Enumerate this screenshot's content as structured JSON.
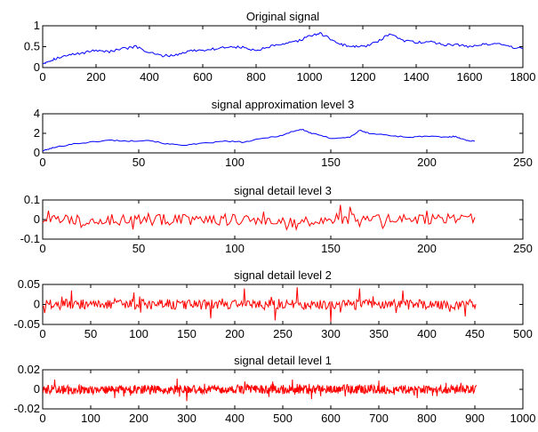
{
  "chart_data": [
    {
      "type": "line",
      "title": "Original signal",
      "color": "#0000ff",
      "xlim": [
        0,
        1800
      ],
      "ylim": [
        0,
        1
      ],
      "xticks": [
        "0",
        "200",
        "400",
        "600",
        "800",
        "1000",
        "1200",
        "1400",
        "1600",
        "1800"
      ],
      "yticks": [
        "0",
        "0.5",
        "1"
      ],
      "series": [
        {
          "x": [
            0,
            20,
            50,
            100,
            150,
            200,
            250,
            300,
            350,
            400,
            450,
            500,
            550,
            600,
            650,
            700,
            750,
            800,
            850,
            900,
            950,
            1000,
            1040,
            1080,
            1120,
            1160,
            1200,
            1250,
            1300,
            1350,
            1400,
            1450,
            1500,
            1550,
            1600,
            1650,
            1700,
            1750,
            1800
          ],
          "values": [
            0.1,
            0.15,
            0.22,
            0.3,
            0.35,
            0.42,
            0.38,
            0.45,
            0.5,
            0.35,
            0.28,
            0.3,
            0.4,
            0.42,
            0.45,
            0.5,
            0.48,
            0.4,
            0.5,
            0.55,
            0.62,
            0.75,
            0.82,
            0.68,
            0.55,
            0.5,
            0.5,
            0.6,
            0.8,
            0.65,
            0.6,
            0.62,
            0.55,
            0.55,
            0.5,
            0.55,
            0.58,
            0.5,
            0.45
          ]
        }
      ]
    },
    {
      "type": "line",
      "title": "signal approximation level 3",
      "color": "#0000ff",
      "xlim": [
        0,
        250
      ],
      "ylim": [
        0,
        4
      ],
      "xticks": [
        "0",
        "50",
        "100",
        "150",
        "200",
        "250"
      ],
      "yticks": [
        "0",
        "2",
        "4"
      ],
      "series": [
        {
          "x": [
            0,
            5,
            15,
            25,
            35,
            45,
            55,
            65,
            75,
            85,
            95,
            105,
            115,
            125,
            130,
            135,
            140,
            150,
            160,
            165,
            170,
            180,
            190,
            200,
            210,
            215,
            220,
            225
          ],
          "values": [
            0.2,
            0.5,
            0.9,
            1.1,
            1.3,
            1.2,
            1.3,
            0.9,
            0.8,
            1.0,
            1.2,
            1.1,
            1.5,
            1.8,
            2.2,
            2.4,
            2.0,
            1.5,
            1.6,
            2.3,
            2.0,
            1.8,
            1.6,
            1.7,
            1.6,
            1.7,
            1.3,
            1.2
          ]
        }
      ]
    },
    {
      "type": "line",
      "title": "signal detail level 3",
      "color": "#ff0000",
      "xlim": [
        0,
        250
      ],
      "ylim": [
        -0.1,
        0.1
      ],
      "xticks": [
        "0",
        "50",
        "100",
        "150",
        "200",
        "250"
      ],
      "yticks": [
        "-0.1",
        "0",
        "0.1"
      ],
      "n_points": 226,
      "amplitude": 0.03,
      "peaks": [
        [
          3,
          0.045
        ],
        [
          20,
          -0.04
        ],
        [
          47,
          -0.05
        ],
        [
          115,
          0.04
        ],
        [
          132,
          -0.05
        ],
        [
          155,
          0.075
        ],
        [
          160,
          0.065
        ],
        [
          165,
          -0.035
        ],
        [
          177,
          -0.045
        ],
        [
          200,
          0.045
        ]
      ]
    },
    {
      "type": "line",
      "title": "signal detail level 2",
      "color": "#ff0000",
      "xlim": [
        0,
        500
      ],
      "ylim": [
        -0.05,
        0.05
      ],
      "xticks": [
        "0",
        "50",
        "100",
        "150",
        "200",
        "250",
        "300",
        "350",
        "400",
        "450",
        "500"
      ],
      "yticks": [
        "-0.05",
        "0",
        "0.05"
      ],
      "n_points": 452,
      "amplitude": 0.013,
      "peaks": [
        [
          30,
          0.035
        ],
        [
          95,
          0.03
        ],
        [
          175,
          -0.035
        ],
        [
          210,
          0.04
        ],
        [
          242,
          -0.04
        ],
        [
          265,
          0.043
        ],
        [
          300,
          -0.043
        ],
        [
          330,
          0.04
        ],
        [
          375,
          0.035
        ],
        [
          440,
          -0.03
        ]
      ]
    },
    {
      "type": "line",
      "title": "signal detail level 1",
      "color": "#ff0000",
      "xlim": [
        0,
        1000
      ],
      "ylim": [
        -0.02,
        0.02
      ],
      "xticks": [
        "0",
        "100",
        "200",
        "300",
        "400",
        "500",
        "600",
        "700",
        "800",
        "900",
        "1000"
      ],
      "yticks": [
        "-0.02",
        "0",
        "0.02"
      ],
      "n_points": 904,
      "amplitude": 0.0045,
      "peaks": [
        [
          25,
          0.01
        ],
        [
          150,
          -0.009
        ],
        [
          280,
          0.011
        ],
        [
          300,
          -0.012
        ],
        [
          520,
          0.01
        ],
        [
          560,
          -0.01
        ],
        [
          700,
          0.009
        ],
        [
          780,
          -0.009
        ]
      ]
    }
  ]
}
